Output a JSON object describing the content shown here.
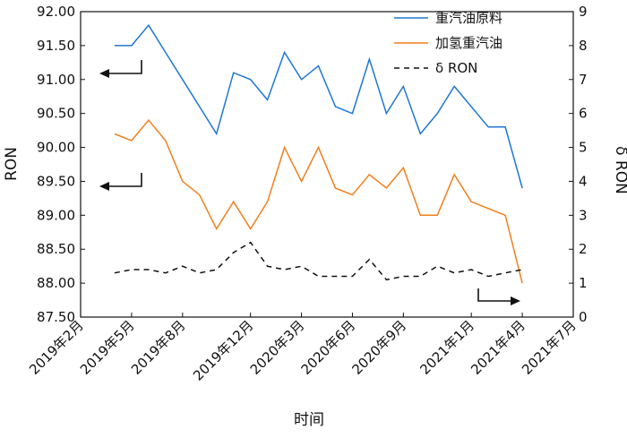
{
  "chart_data": {
    "type": "line",
    "xlabel": "时间",
    "ylabel_left": "RON",
    "ylabel_right": "δ RON",
    "ylim_left": [
      87.5,
      92.0
    ],
    "ylim_right": [
      0,
      9
    ],
    "y_left_ticks": [
      "92.00",
      "91.50",
      "91.00",
      "90.50",
      "90.00",
      "89.50",
      "89.00",
      "88.50",
      "88.00",
      "87.50"
    ],
    "y_right_ticks": [
      "9",
      "8",
      "7",
      "6",
      "5",
      "4",
      "3",
      "2",
      "1",
      "0"
    ],
    "x_ticks": [
      "2019年2月",
      "2019年5月",
      "2019年8月",
      "2019年12月",
      "2020年3月",
      "2020年6月",
      "2020年9月",
      "2021年1月",
      "2021年4月",
      "2021年7月"
    ],
    "grid": false,
    "legend_position": "top-right",
    "series": [
      {
        "name": "重汽油原料",
        "axis": "left",
        "color": "#1f77d4",
        "style": "solid",
        "x": [
          "2019-04",
          "2019-05",
          "2019-06",
          "2019-07",
          "2019-08",
          "2019-09",
          "2019-10",
          "2019-11",
          "2019-12",
          "2020-01",
          "2020-02",
          "2020-03",
          "2020-04",
          "2020-05",
          "2020-06",
          "2020-07",
          "2020-08",
          "2020-09",
          "2020-10",
          "2020-11",
          "2020-12",
          "2021-01",
          "2021-02",
          "2021-03",
          "2021-04"
        ],
        "y": [
          91.5,
          91.5,
          91.8,
          91.4,
          91.0,
          90.6,
          90.2,
          91.1,
          91.0,
          90.7,
          91.4,
          91.0,
          91.2,
          90.6,
          90.5,
          91.3,
          90.5,
          90.9,
          90.2,
          90.5,
          90.9,
          90.6,
          90.3,
          90.3,
          89.4
        ]
      },
      {
        "name": "加氢重汽油",
        "axis": "left",
        "color": "#f07f1e",
        "style": "solid",
        "x": [
          "2019-04",
          "2019-05",
          "2019-06",
          "2019-07",
          "2019-08",
          "2019-09",
          "2019-10",
          "2019-11",
          "2019-12",
          "2020-01",
          "2020-02",
          "2020-03",
          "2020-04",
          "2020-05",
          "2020-06",
          "2020-07",
          "2020-08",
          "2020-09",
          "2020-10",
          "2020-11",
          "2020-12",
          "2021-01",
          "2021-02",
          "2021-03",
          "2021-04"
        ],
        "y": [
          90.2,
          90.1,
          90.4,
          90.1,
          89.5,
          89.3,
          88.8,
          89.2,
          88.8,
          89.2,
          90.0,
          89.5,
          90.0,
          89.4,
          89.3,
          89.6,
          89.4,
          89.7,
          89.0,
          89.0,
          89.6,
          89.2,
          89.1,
          89.0,
          88.0
        ]
      },
      {
        "name": "δ RON",
        "axis": "right",
        "color": "#111111",
        "style": "dashed",
        "x": [
          "2019-04",
          "2019-05",
          "2019-06",
          "2019-07",
          "2019-08",
          "2019-09",
          "2019-10",
          "2019-11",
          "2019-12",
          "2020-01",
          "2020-02",
          "2020-03",
          "2020-04",
          "2020-05",
          "2020-06",
          "2020-07",
          "2020-08",
          "2020-09",
          "2020-10",
          "2020-11",
          "2020-12",
          "2021-01",
          "2021-02",
          "2021-03",
          "2021-04"
        ],
        "y": [
          1.3,
          1.4,
          1.4,
          1.3,
          1.5,
          1.3,
          1.4,
          1.9,
          2.2,
          1.5,
          1.4,
          1.5,
          1.2,
          1.2,
          1.2,
          1.7,
          1.1,
          1.2,
          1.2,
          1.5,
          1.3,
          1.4,
          1.2,
          1.3,
          1.4
        ]
      }
    ]
  }
}
